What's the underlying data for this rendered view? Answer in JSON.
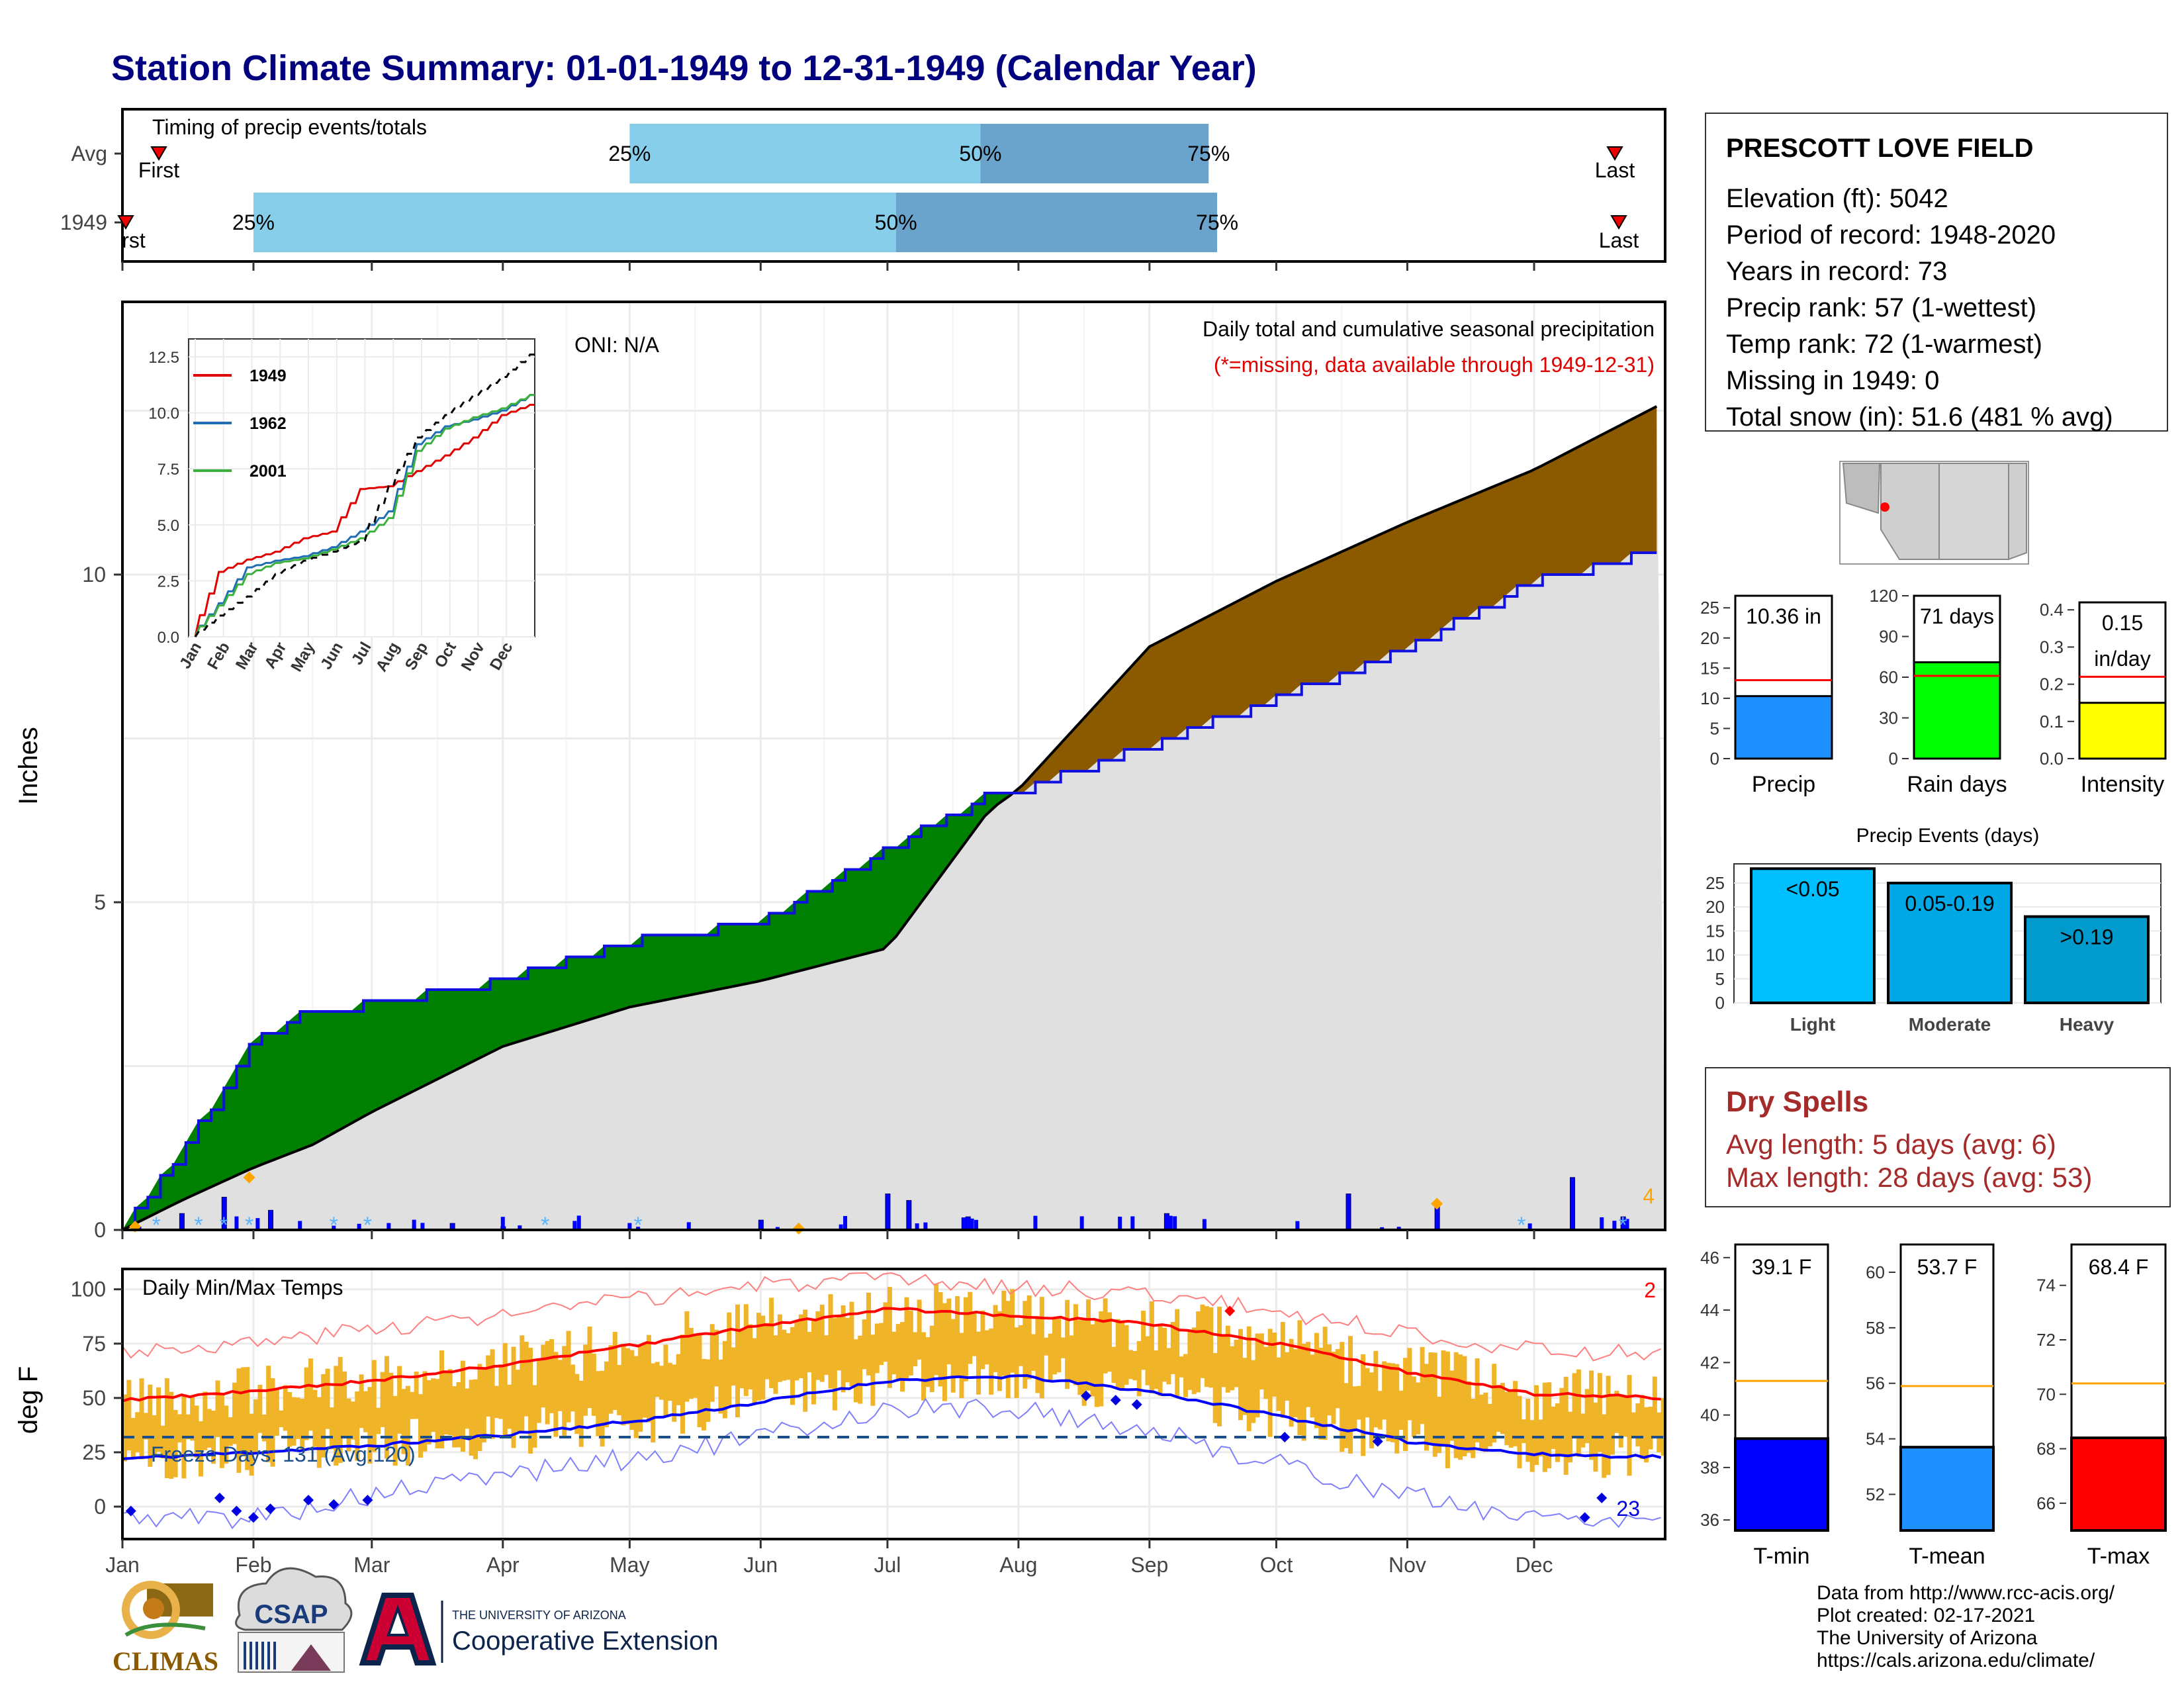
{
  "title": "Station Climate Summary: 01-01-1949 to 12-31-1949 (Calendar Year)",
  "timing": {
    "title": "Timing of precip events/totals",
    "rows": [
      "Avg",
      "1949"
    ],
    "first_label": "First",
    "last_label": "Last",
    "truncated_first": "rst",
    "p25": "25%",
    "p50": "50%",
    "p75": "75%"
  },
  "main": {
    "ylabel": "Inches",
    "header1": "Daily total and cumulative seasonal precipitation",
    "header2": "(*=missing, data available through 1949-12-31)",
    "oni": "ONI: N/A",
    "count_label": "4",
    "yticks": [
      "0",
      "5",
      "10"
    ]
  },
  "inset": {
    "legend": [
      "1949",
      "1962",
      "2001"
    ],
    "yticks": [
      "0.0",
      "2.5",
      "5.0",
      "7.5",
      "10.0",
      "12.5"
    ],
    "xticks": [
      "Jan",
      "Feb",
      "Mar",
      "Apr",
      "May",
      "Jun",
      "Jul",
      "Aug",
      "Sep",
      "Oct",
      "Nov",
      "Dec"
    ]
  },
  "temps": {
    "title": "Daily Min/Max Temps",
    "ylabel": "deg F",
    "freeze": "Freeze Days: 131 (Avg:120)",
    "hot_count": "2",
    "cold_count": "23",
    "yticks": [
      "0",
      "25",
      "50",
      "75",
      "100"
    ]
  },
  "months": [
    "Jan",
    "Feb",
    "Mar",
    "Apr",
    "May",
    "Jun",
    "Jul",
    "Aug",
    "Sep",
    "Oct",
    "Nov",
    "Dec"
  ],
  "station": {
    "name": "PRESCOTT LOVE FIELD",
    "lines": [
      "Elevation (ft): 5042",
      "Period of record: 1948-2020",
      "Years in record: 73",
      "Precip rank: 57 (1-wettest)",
      "Temp rank: 72 (1-warmest)",
      "Missing in 1949: 0",
      "Total snow (in): 51.6 (481 % avg)"
    ]
  },
  "mini": {
    "precip": {
      "label": "Precip",
      "value_text": "10.36 in",
      "yticks": [
        "0",
        "5",
        "10",
        "15",
        "20",
        "25"
      ]
    },
    "raindays": {
      "label": "Rain days",
      "value_text": "71 days",
      "yticks": [
        "0",
        "30",
        "60",
        "90",
        "120"
      ]
    },
    "intensity": {
      "label": "Intensity",
      "value_text1": "0.15",
      "value_text2": "in/day",
      "yticks": [
        "0.0",
        "0.1",
        "0.2",
        "0.3",
        "0.4"
      ]
    }
  },
  "events": {
    "title": "Precip Events (days)",
    "categories": [
      "Light",
      "Moderate",
      "Heavy"
    ],
    "labels": [
      "<0.05",
      "0.05-0.19",
      ">0.19"
    ],
    "yticks": [
      "0",
      "5",
      "10",
      "15",
      "20",
      "25"
    ]
  },
  "dry": {
    "title": "Dry Spells",
    "avg": "Avg length: 5 days (avg: 6)",
    "max": "Max length: 28 days (avg: 53)"
  },
  "tbars": {
    "tmin": {
      "label": "T-min",
      "value_text": "39.1 F",
      "yticks": [
        "36",
        "38",
        "40",
        "42",
        "44",
        "46"
      ]
    },
    "tmean": {
      "label": "T-mean",
      "value_text": "53.7 F",
      "yticks": [
        "52",
        "54",
        "56",
        "58",
        "60"
      ]
    },
    "tmax": {
      "label": "T-max",
      "value_text": "68.4 F",
      "yticks": [
        "66",
        "68",
        "70",
        "72",
        "74"
      ]
    }
  },
  "logos": {
    "climas": "CLIMAS",
    "csap": "CSAP",
    "ua_small": "THE UNIVERSITY OF ARIZONA",
    "coop": "Cooperative Extension"
  },
  "credits": [
    "Data from http://www.rcc-acis.org/",
    "Plot created: 02-17-2021",
    "The University of Arizona",
    "https://cals.arizona.edu/climate/"
  ],
  "colors": {
    "title": "#00007f",
    "observed_above": "#008000",
    "observed_below": "#8b5a00",
    "normal": "#e0e0e0",
    "tmax": "#ff0000",
    "tmin": "#0000ff",
    "range_bar": "#f0b429",
    "q_light": "#87ceeb",
    "q_dark": "#6aa4cc"
  },
  "chart_data": [
    {
      "type": "bar",
      "title": "Timing of precip events/totals",
      "categories": [
        "Avg",
        "1949"
      ],
      "series": [
        {
          "name": "25%",
          "values": [
            "May 1",
            "Feb 1"
          ]
        },
        {
          "name": "50%",
          "values": [
            "Jul 23",
            "Jul 3"
          ]
        },
        {
          "name": "75%",
          "values": [
            "Sep 15",
            "Sep 17"
          ]
        }
      ]
    },
    {
      "type": "area",
      "title": "Daily total and cumulative seasonal precipitation",
      "ylabel": "Inches",
      "ylim": [
        0,
        12.5
      ],
      "x": [
        "Jan 1",
        "Jan 15",
        "Feb 1",
        "Feb 15",
        "Mar 1",
        "Apr 1",
        "May 1",
        "Jun 1",
        "Jul 1",
        "Jul 25",
        "Aug 1",
        "Sep 1",
        "Oct 1",
        "Nov 1",
        "Dec 1",
        "Dec 31"
      ],
      "series": [
        {
          "name": "1949",
          "values": [
            0.0,
            1.2,
            2.9,
            3.35,
            3.45,
            3.8,
            4.4,
            4.7,
            5.8,
            6.65,
            6.72,
            7.4,
            8.1,
            8.9,
            9.9,
            10.36
          ]
        },
        {
          "name": "normal",
          "values": [
            0.0,
            0.45,
            0.95,
            1.3,
            1.8,
            2.8,
            3.4,
            3.8,
            4.3,
            6.4,
            6.72,
            8.9,
            9.9,
            10.8,
            11.6,
            12.6
          ]
        }
      ],
      "daily": {
        "x": [
          "Jan 15",
          "Jan 25",
          "Feb 5",
          "Mar 20",
          "Apr 1",
          "Jun 1",
          "Jul 1",
          "Jul 6",
          "Jul 20",
          "Sep 5",
          "Oct 18",
          "Nov 8",
          "Dec 10",
          "Dec 22"
        ],
        "values": [
          0.25,
          0.5,
          0.3,
          0.1,
          0.05,
          0.15,
          0.55,
          0.45,
          0.2,
          0.25,
          0.55,
          0.35,
          0.8,
          0.2
        ]
      }
    },
    {
      "type": "line",
      "title": "",
      "categories": [
        "Jan",
        "Feb",
        "Mar",
        "Apr",
        "May",
        "Jun",
        "Jul",
        "Aug",
        "Sep",
        "Oct",
        "Nov",
        "Dec",
        "Dec 31"
      ],
      "ylim": [
        0,
        12.5
      ],
      "series": [
        {
          "name": "1949",
          "values": [
            0,
            2.9,
            3.45,
            3.8,
            4.4,
            4.7,
            6.6,
            6.72,
            7.4,
            8.1,
            8.9,
            9.9,
            10.36
          ]
        },
        {
          "name": "1962",
          "values": [
            0,
            1.5,
            3.1,
            3.4,
            3.6,
            4.0,
            4.7,
            5.6,
            8.6,
            9.4,
            9.7,
            10.1,
            10.8
          ]
        },
        {
          "name": "2001",
          "values": [
            0,
            1.4,
            2.8,
            3.3,
            3.5,
            3.9,
            4.4,
            5.3,
            8.3,
            9.3,
            9.8,
            10.2,
            10.8
          ]
        },
        {
          "name": "normal",
          "values": [
            0,
            0.95,
            1.8,
            2.8,
            3.4,
            3.8,
            4.3,
            6.72,
            8.9,
            9.9,
            10.8,
            11.6,
            12.6
          ]
        }
      ]
    },
    {
      "type": "line",
      "title": "Daily Min/Max Temps",
      "ylabel": "deg F",
      "ylim": [
        -10,
        108
      ],
      "categories": [
        "Jan",
        "Feb",
        "Mar",
        "Apr",
        "May",
        "Jun",
        "Jul",
        "Aug",
        "Sep",
        "Oct",
        "Nov",
        "Dec",
        "Dec 31"
      ],
      "series": [
        {
          "name": "normal max",
          "values": [
            49,
            53,
            58,
            65,
            74,
            83,
            91,
            88,
            84,
            75,
            62,
            52,
            50
          ]
        },
        {
          "name": "normal min",
          "values": [
            22,
            25,
            28,
            33,
            39,
            48,
            58,
            60,
            53,
            42,
            30,
            24,
            23
          ]
        },
        {
          "name": "record max",
          "values": [
            72,
            75,
            82,
            88,
            95,
            102,
            104,
            101,
            98,
            90,
            80,
            72,
            70
          ]
        },
        {
          "name": "record min",
          "values": [
            -5,
            -5,
            5,
            15,
            22,
            32,
            45,
            45,
            35,
            20,
            5,
            -5,
            -5
          ]
        }
      ],
      "freeze_line": 32
    },
    {
      "type": "bar",
      "categories": [
        "Precip"
      ],
      "values": [
        10.36
      ],
      "ylim": [
        0,
        27
      ],
      "reference": 13.0
    },
    {
      "type": "bar",
      "categories": [
        "Rain days"
      ],
      "values": [
        71
      ],
      "ylim": [
        0,
        120
      ],
      "reference": 61
    },
    {
      "type": "bar",
      "categories": [
        "Intensity"
      ],
      "values": [
        0.15
      ],
      "ylim": [
        0,
        0.42
      ],
      "reference": 0.22
    },
    {
      "type": "bar",
      "title": "Precip Events (days)",
      "categories": [
        "Light",
        "Moderate",
        "Heavy"
      ],
      "values": [
        28,
        25,
        18
      ],
      "ylim": [
        0,
        29
      ]
    },
    {
      "type": "bar",
      "categories": [
        "T-min"
      ],
      "values": [
        39.1
      ],
      "ylim": [
        35.6,
        46.5
      ],
      "reference": 41.3
    },
    {
      "type": "bar",
      "categories": [
        "T-mean"
      ],
      "values": [
        53.7
      ],
      "ylim": [
        50.7,
        61
      ],
      "reference": 55.9
    },
    {
      "type": "bar",
      "categories": [
        "T-max"
      ],
      "values": [
        68.4
      ],
      "ylim": [
        65,
        75.5
      ],
      "reference": 70.4
    }
  ]
}
